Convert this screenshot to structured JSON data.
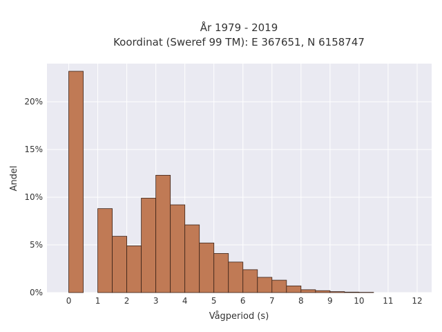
{
  "chart_data": {
    "type": "bar",
    "title_line1": "År 1979 - 2019",
    "title_line2": "Koordinat (Sweref 99 TM): E 367651, N 6158747",
    "xlabel": "Vågperiod (s)",
    "ylabel": "Andel",
    "xlim": [
      -0.75,
      12.5
    ],
    "ylim": [
      0,
      24
    ],
    "x_ticks": [
      0,
      1,
      2,
      3,
      4,
      5,
      6,
      7,
      8,
      9,
      10,
      11,
      12
    ],
    "y_ticks": [
      0,
      5,
      10,
      15,
      20
    ],
    "y_tick_labels": [
      "0%",
      "5%",
      "10%",
      "15%",
      "20%"
    ],
    "bin_width": 0.5,
    "bins": [
      {
        "start": 0.0,
        "value": 23.2
      },
      {
        "start": 1.0,
        "value": 8.8
      },
      {
        "start": 1.5,
        "value": 5.9
      },
      {
        "start": 2.0,
        "value": 4.9
      },
      {
        "start": 2.5,
        "value": 9.9
      },
      {
        "start": 3.0,
        "value": 12.3
      },
      {
        "start": 3.5,
        "value": 9.2
      },
      {
        "start": 4.0,
        "value": 7.1
      },
      {
        "start": 4.5,
        "value": 5.2
      },
      {
        "start": 5.0,
        "value": 4.1
      },
      {
        "start": 5.5,
        "value": 3.2
      },
      {
        "start": 6.0,
        "value": 2.4
      },
      {
        "start": 6.5,
        "value": 1.6
      },
      {
        "start": 7.0,
        "value": 1.3
      },
      {
        "start": 7.5,
        "value": 0.7
      },
      {
        "start": 8.0,
        "value": 0.3
      },
      {
        "start": 8.5,
        "value": 0.2
      },
      {
        "start": 9.0,
        "value": 0.1
      },
      {
        "start": 9.5,
        "value": 0.05
      },
      {
        "start": 10.0,
        "value": 0.03
      }
    ],
    "grid": true,
    "bar_color": "#c07a55",
    "bar_edge_color": "#3a2218",
    "plot_bg": "#eaeaf2"
  }
}
